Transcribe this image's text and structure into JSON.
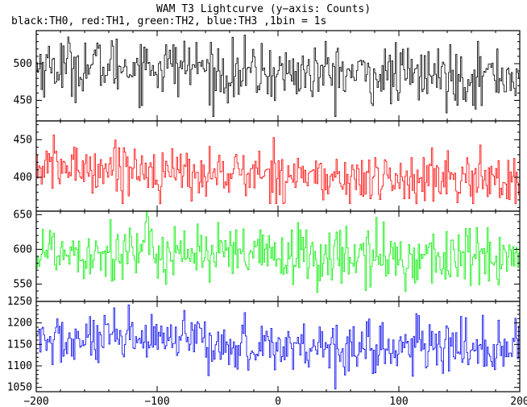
{
  "chart_data": {
    "type": "line",
    "title": "WAM T3 Lightcurve (y−axis: Counts)",
    "subtitle": "black:TH0, red:TH1, green:TH2, blue:TH3 ,1bin = 1s",
    "xlabel": "",
    "ylabel": "",
    "xlim": [
      -200,
      200
    ],
    "x_ticks": [
      -200,
      -100,
      0,
      100,
      200
    ],
    "x_tick_labels": [
      "−200",
      "−100",
      "0",
      "100",
      "200"
    ],
    "bin_seconds": 1,
    "grid": false,
    "panels": [
      {
        "name": "TH0",
        "color": "#000000",
        "ylim": [
          422,
          545
        ],
        "y_ticks": [
          450,
          500
        ],
        "y_tick_labels": [
          "450",
          "500"
        ],
        "mean": 490,
        "std": 20,
        "segments": [
          {
            "x": [
              -200,
              -60
            ],
            "level": 497
          },
          {
            "x": [
              -60,
              60
            ],
            "level": 487
          },
          {
            "x": [
              60,
              200
            ],
            "level": 484
          }
        ],
        "range": [
          428,
          545
        ]
      },
      {
        "name": "TH1",
        "color": "#ff0000",
        "ylim": [
          355,
          475
        ],
        "y_ticks": [
          400,
          450
        ],
        "y_tick_labels": [
          "400",
          "450"
        ],
        "mean": 405,
        "std": 17,
        "segments": [
          {
            "x": [
              -200,
              -105
            ],
            "level": 413
          },
          {
            "x": [
              -105,
              30
            ],
            "level": 405
          },
          {
            "x": [
              30,
              200
            ],
            "level": 397
          }
        ],
        "range": [
          365,
          475
        ]
      },
      {
        "name": "TH2",
        "color": "#00ee00",
        "ylim": [
          525,
          655
        ],
        "y_ticks": [
          550,
          600,
          650
        ],
        "y_tick_labels": [
          "550",
          "600",
          "650"
        ],
        "mean": 595,
        "std": 22,
        "segments": [
          {
            "x": [
              -200,
              -60
            ],
            "level": 598
          },
          {
            "x": [
              -60,
              60
            ],
            "level": 590
          },
          {
            "x": [
              60,
              200
            ],
            "level": 588
          }
        ],
        "range": [
          525,
          655
        ]
      },
      {
        "name": "TH3",
        "color": "#0000ee",
        "ylim": [
          1040,
          1250
        ],
        "y_ticks": [
          1050,
          1100,
          1150,
          1200,
          1250
        ],
        "y_tick_labels": [
          "1050",
          "1100",
          "1150",
          "1200",
          "1250"
        ],
        "mean": 1150,
        "std": 30,
        "segments": [
          {
            "x": [
              -200,
              -60
            ],
            "level": 1158
          },
          {
            "x": [
              -60,
              60
            ],
            "level": 1147
          },
          {
            "x": [
              60,
              200
            ],
            "level": 1142
          }
        ],
        "range": [
          1040,
          1250
        ]
      }
    ]
  }
}
